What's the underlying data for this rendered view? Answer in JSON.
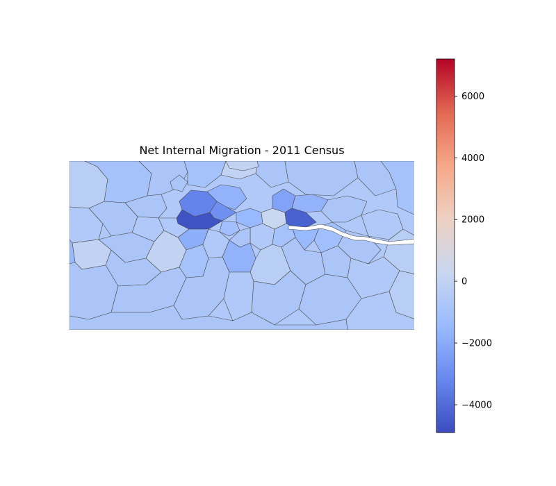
{
  "chart_data": {
    "type": "heatmap",
    "title": "Net Internal Migration - 2011 Census",
    "colormap": {
      "name": "coolwarm",
      "vmin": -4900,
      "vmax": 7200,
      "stops": [
        "#3b4cc0",
        "#6788ee",
        "#9abbff",
        "#c9d7f0",
        "#edd1c2",
        "#f7a889",
        "#e26952",
        "#b40426"
      ],
      "ticks": [
        -4000,
        -2000,
        0,
        2000,
        4000,
        6000
      ],
      "tick_labels": [
        "−4000",
        "−2000",
        "0",
        "2000",
        "4000",
        "6000"
      ]
    },
    "regions": [
      {
        "value": -4700
      },
      {
        "value": -4300
      },
      {
        "value": -3300
      },
      {
        "value": -2900
      },
      {
        "value": -2300
      },
      {
        "value": -1900
      },
      {
        "value": -1700
      },
      {
        "value": -1500
      },
      {
        "value": -1200
      },
      {
        "value": -1000
      },
      {
        "value": -800
      },
      {
        "value": -600
      },
      {
        "value": -300
      },
      {
        "value": 0
      },
      {
        "value": 300
      },
      {
        "value": 700
      }
    ]
  }
}
